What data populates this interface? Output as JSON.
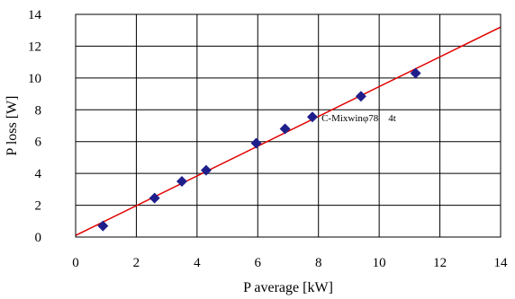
{
  "chart_data": {
    "type": "scatter",
    "xlabel": "P average [kW]",
    "ylabel": "P loss [W]",
    "xlim": [
      0,
      14
    ],
    "ylim": [
      0,
      14
    ],
    "xticks": [
      "0",
      "2",
      "4",
      "6",
      "8",
      "10",
      "12",
      "14"
    ],
    "yticks": [
      "0",
      "2",
      "4",
      "6",
      "8",
      "10",
      "12",
      "14"
    ],
    "grid": true,
    "series": [
      {
        "marker": "diamond",
        "color": "#1f1f8c",
        "x": [
          0.9,
          2.6,
          3.5,
          4.3,
          5.95,
          6.9,
          7.8,
          9.4,
          11.2
        ],
        "y": [
          0.7,
          2.45,
          3.5,
          4.2,
          5.9,
          6.8,
          7.55,
          8.85,
          10.3
        ]
      }
    ],
    "trendline": {
      "color": "#e00000",
      "x": [
        0,
        14
      ],
      "y": [
        0.1,
        13.2
      ]
    },
    "annotation": {
      "text": "C-Mixwinφ78　4t",
      "x": 8.1,
      "y": 7.05
    }
  }
}
